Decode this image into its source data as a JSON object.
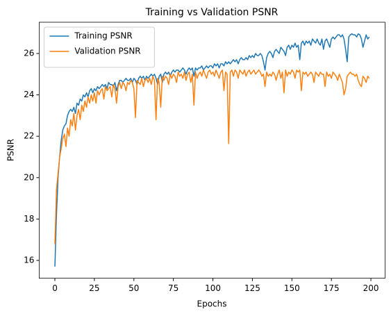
{
  "chart_data": {
    "type": "line",
    "title": "Training vs Validation PSNR",
    "xlabel": "Epochs",
    "ylabel": "PSNR",
    "x": [
      0,
      1,
      2,
      3,
      4,
      5,
      6,
      7,
      8,
      9,
      10,
      11,
      12,
      13,
      14,
      15,
      16,
      17,
      18,
      19,
      20,
      21,
      22,
      23,
      24,
      25,
      26,
      27,
      28,
      29,
      30,
      31,
      32,
      33,
      34,
      35,
      36,
      37,
      38,
      39,
      40,
      41,
      42,
      43,
      44,
      45,
      46,
      47,
      48,
      49,
      50,
      51,
      52,
      53,
      54,
      55,
      56,
      57,
      58,
      59,
      60,
      61,
      62,
      63,
      64,
      65,
      66,
      67,
      68,
      69,
      70,
      71,
      72,
      73,
      74,
      75,
      76,
      77,
      78,
      79,
      80,
      81,
      82,
      83,
      84,
      85,
      86,
      87,
      88,
      89,
      90,
      91,
      92,
      93,
      94,
      95,
      96,
      97,
      98,
      99,
      100,
      101,
      102,
      103,
      104,
      105,
      106,
      107,
      108,
      109,
      110,
      111,
      112,
      113,
      114,
      115,
      116,
      117,
      118,
      119,
      120,
      121,
      122,
      123,
      124,
      125,
      126,
      127,
      128,
      129,
      130,
      131,
      132,
      133,
      134,
      135,
      136,
      137,
      138,
      139,
      140,
      141,
      142,
      143,
      144,
      145,
      146,
      147,
      148,
      149,
      150,
      151,
      152,
      153,
      154,
      155,
      156,
      157,
      158,
      159,
      160,
      161,
      162,
      163,
      164,
      165,
      166,
      167,
      168,
      169,
      170,
      171,
      172,
      173,
      174,
      175,
      176,
      177,
      178,
      179,
      180,
      181,
      182,
      183,
      184,
      185,
      186,
      187,
      188,
      189,
      190,
      191,
      192,
      193,
      194,
      195,
      196,
      197,
      198,
      199
    ],
    "series": [
      {
        "name": "Training PSNR",
        "color": "#1f77b4",
        "values": [
          15.7,
          18.2,
          20.0,
          21.0,
          21.8,
          22.3,
          22.5,
          22.6,
          23.0,
          23.2,
          23.3,
          23.2,
          23.4,
          23.1,
          23.6,
          23.5,
          23.8,
          23.7,
          24.0,
          23.9,
          24.1,
          23.9,
          24.2,
          24.3,
          24.1,
          24.3,
          24.2,
          24.4,
          24.3,
          24.4,
          24.5,
          24.4,
          24.5,
          24.3,
          24.6,
          24.5,
          24.5,
          24.4,
          24.6,
          24.2,
          24.5,
          24.7,
          24.7,
          24.6,
          24.7,
          24.8,
          24.7,
          24.7,
          24.8,
          24.6,
          24.8,
          24.7,
          24.5,
          24.8,
          24.9,
          24.8,
          24.9,
          24.7,
          24.9,
          24.8,
          24.9,
          25.0,
          24.9,
          25.0,
          24.8,
          24.5,
          24.9,
          25.0,
          24.6,
          25.0,
          25.1,
          25.0,
          25.1,
          24.9,
          25.1,
          25.2,
          25.1,
          25.2,
          25.2,
          25.1,
          25.2,
          25.3,
          25.2,
          25.0,
          25.2,
          25.3,
          25.2,
          25.3,
          24.9,
          25.3,
          25.2,
          25.3,
          25.3,
          25.4,
          25.2,
          25.3,
          25.4,
          25.3,
          25.4,
          25.4,
          25.3,
          25.5,
          25.4,
          25.5,
          25.3,
          25.5,
          25.5,
          25.4,
          25.6,
          25.5,
          25.6,
          25.5,
          25.6,
          25.7,
          25.6,
          25.7,
          25.5,
          25.7,
          25.8,
          25.7,
          25.7,
          25.8,
          25.7,
          25.9,
          25.8,
          25.9,
          25.8,
          26.0,
          25.9,
          25.9,
          26.0,
          25.9,
          25.6,
          25.2,
          25.8,
          26.0,
          26.1,
          26.0,
          25.8,
          26.1,
          26.2,
          26.1,
          26.0,
          26.3,
          26.2,
          26.1,
          25.9,
          26.3,
          26.4,
          26.2,
          26.4,
          26.3,
          26.5,
          26.3,
          26.4,
          25.7,
          26.5,
          26.6,
          26.4,
          26.6,
          26.5,
          26.6,
          26.4,
          26.7,
          26.6,
          26.5,
          26.7,
          26.5,
          26.4,
          26.7,
          26.2,
          26.6,
          26.7,
          26.5,
          26.3,
          26.7,
          26.8,
          26.7,
          26.8,
          26.9,
          26.9,
          26.8,
          26.9,
          26.7,
          26.2,
          25.6,
          26.8,
          26.9,
          26.95,
          26.9,
          26.9,
          26.8,
          26.95,
          26.9,
          26.7,
          26.3,
          26.6,
          26.9,
          26.7,
          26.8
        ]
      },
      {
        "name": "Validation PSNR",
        "color": "#ff7f0e",
        "values": [
          16.8,
          19.4,
          20.2,
          21.0,
          21.4,
          21.9,
          22.1,
          21.5,
          22.4,
          22.0,
          22.8,
          22.5,
          23.1,
          22.3,
          23.0,
          23.3,
          22.8,
          23.5,
          23.2,
          23.7,
          23.4,
          23.9,
          23.6,
          24.0,
          23.7,
          24.1,
          23.6,
          24.2,
          24.0,
          24.2,
          24.3,
          23.8,
          24.4,
          24.2,
          24.3,
          24.4,
          23.9,
          24.5,
          24.3,
          23.6,
          24.4,
          24.6,
          24.3,
          24.6,
          24.5,
          24.2,
          24.6,
          24.5,
          24.7,
          24.6,
          24.3,
          22.9,
          24.7,
          24.6,
          24.5,
          24.8,
          24.4,
          24.7,
          24.8,
          24.6,
          24.8,
          24.5,
          24.9,
          24.7,
          22.8,
          24.8,
          24.6,
          23.4,
          24.9,
          24.7,
          24.9,
          24.8,
          24.5,
          25.0,
          24.8,
          25.0,
          24.9,
          24.6,
          25.1,
          24.9,
          25.0,
          24.8,
          25.1,
          24.7,
          25.0,
          25.1,
          24.6,
          25.0,
          23.5,
          25.1,
          24.8,
          25.0,
          25.1,
          24.9,
          25.2,
          25.0,
          24.8,
          25.1,
          25.2,
          25.0,
          25.1,
          24.9,
          25.2,
          25.0,
          24.8,
          25.1,
          25.2,
          24.2,
          25.1,
          25.0,
          21.65,
          25.1,
          25.2,
          24.9,
          25.2,
          25.1,
          24.8,
          25.2,
          25.1,
          25.0,
          25.2,
          24.9,
          25.1,
          25.2,
          25.0,
          25.1,
          25.2,
          25.0,
          25.1,
          25.2,
          25.1,
          24.9,
          25.0,
          24.4,
          25.1,
          24.9,
          25.0,
          24.9,
          25.1,
          25.0,
          24.7,
          25.0,
          25.2,
          24.8,
          25.1,
          24.1,
          25.2,
          24.9,
          25.1,
          25.0,
          25.2,
          25.1,
          24.8,
          25.2,
          25.1,
          25.2,
          24.2,
          25.1,
          25.0,
          25.1,
          24.9,
          25.0,
          25.1,
          25.0,
          24.6,
          25.1,
          25.0,
          24.9,
          25.1,
          25.0,
          25.0,
          24.4,
          25.1,
          24.9,
          25.0,
          24.8,
          25.1,
          25.0,
          24.9,
          24.7,
          25.0,
          24.8,
          24.6,
          24.0,
          24.3,
          24.9,
          25.0,
          25.1,
          25.0,
          25.0,
          24.9,
          25.0,
          24.7,
          24.5,
          24.4,
          24.9,
          24.8,
          24.6,
          24.9,
          24.8
        ]
      }
    ],
    "xlim": [
      -9.95,
      208.95
    ],
    "xticks": [
      0,
      25,
      50,
      75,
      100,
      125,
      150,
      175,
      200
    ],
    "ylim": [
      15.14,
      27.51
    ],
    "yticks": [
      16,
      18,
      20,
      22,
      24,
      26
    ],
    "legend": "upper left"
  }
}
